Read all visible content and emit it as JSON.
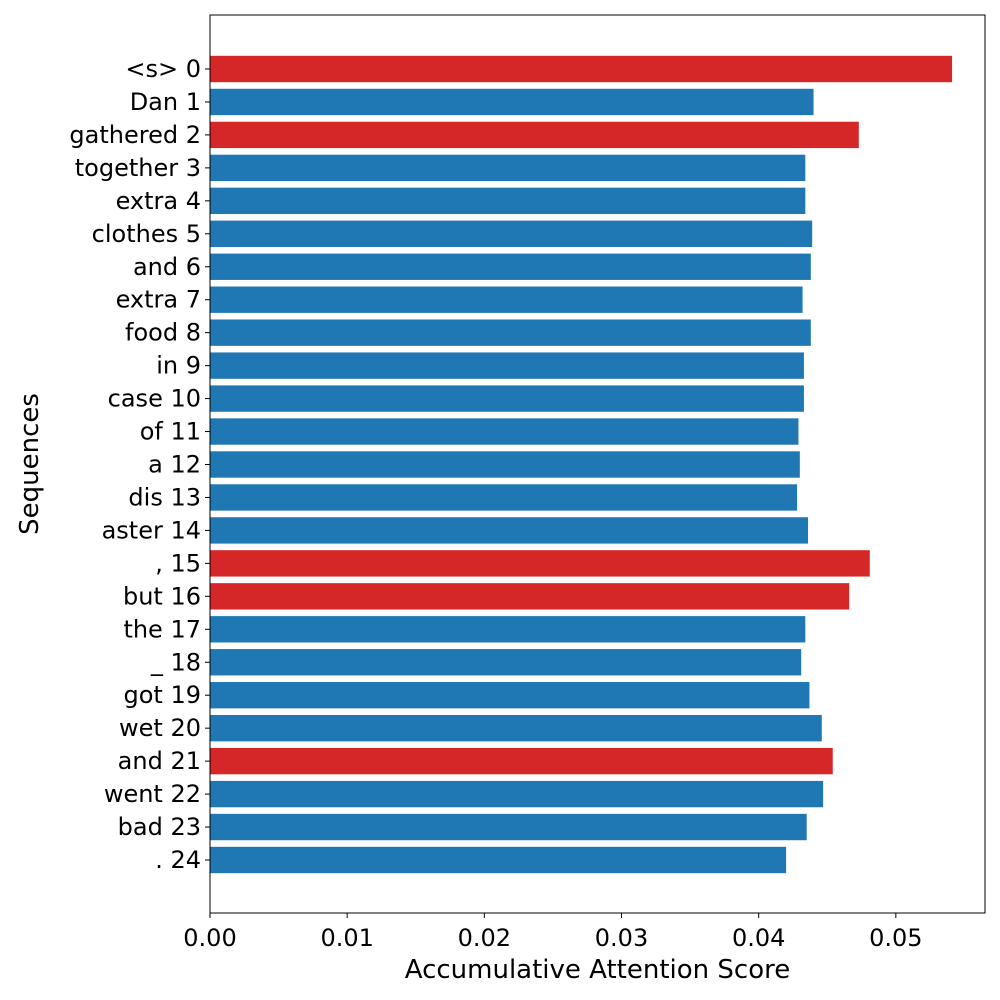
{
  "chart_data": {
    "type": "bar",
    "orientation": "horizontal",
    "xlabel": "Accumulative Attention Score",
    "ylabel": "Sequences",
    "xlim": [
      0,
      0.0565
    ],
    "xticks": [
      "0.00",
      "0.01",
      "0.02",
      "0.03",
      "0.04",
      "0.05"
    ],
    "categories": [
      "<s> 0",
      "Dan 1",
      "gathered 2",
      "together 3",
      "extra 4",
      "clothes 5",
      "and 6",
      "extra 7",
      "food 8",
      "in 9",
      "case 10",
      "of 11",
      "a 12",
      "dis 13",
      "aster 14",
      ", 15",
      "but 16",
      "the 17",
      "_ 18",
      "got 19",
      "wet 20",
      "and 21",
      "went 22",
      "bad 23",
      ". 24"
    ],
    "values": [
      0.0541,
      0.044,
      0.0473,
      0.0434,
      0.0434,
      0.0439,
      0.0438,
      0.0432,
      0.0438,
      0.0433,
      0.0433,
      0.0429,
      0.043,
      0.0428,
      0.0436,
      0.0481,
      0.0466,
      0.0434,
      0.0431,
      0.0437,
      0.0446,
      0.0454,
      0.0447,
      0.0435,
      0.042
    ],
    "highlighted": [
      true,
      false,
      true,
      false,
      false,
      false,
      false,
      false,
      false,
      false,
      false,
      false,
      false,
      false,
      false,
      true,
      true,
      false,
      false,
      false,
      false,
      true,
      false,
      false,
      false
    ],
    "colors": {
      "normal": "#1f77b4",
      "highlight": "#d62728"
    },
    "grid": false
  }
}
